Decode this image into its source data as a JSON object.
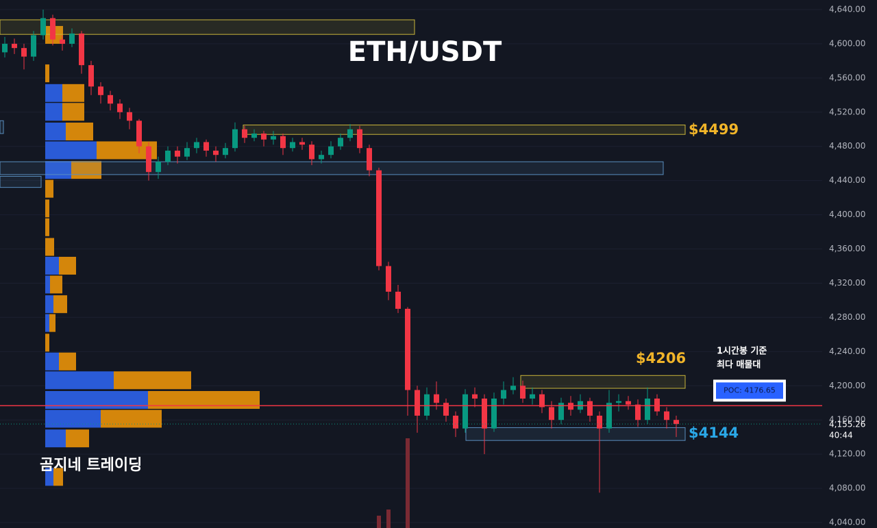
{
  "chart_data": {
    "type": "candlestick",
    "title": "ETH/USDT",
    "ylim": [
      4033.6,
      4651.2
    ],
    "yticks": [
      {
        "value": 4640,
        "label": "4,640.00"
      },
      {
        "value": 4600,
        "label": "4,600.00"
      },
      {
        "value": 4560,
        "label": "4,560.00"
      },
      {
        "value": 4520,
        "label": "4,520.00"
      },
      {
        "value": 4480,
        "label": "4,480.00"
      },
      {
        "value": 4440,
        "label": "4,440.00"
      },
      {
        "value": 4400,
        "label": "4,400.00"
      },
      {
        "value": 4360,
        "label": "4,360.00"
      },
      {
        "value": 4320,
        "label": "4,320.00"
      },
      {
        "value": 4280,
        "label": "4,280.00"
      },
      {
        "value": 4240,
        "label": "4,240.00"
      },
      {
        "value": 4200,
        "label": "4,200.00"
      },
      {
        "value": 4160,
        "label": "4,160.00"
      },
      {
        "value": 4120,
        "label": "4,120.00"
      },
      {
        "value": 4080,
        "label": "4,080.00"
      },
      {
        "value": 4040,
        "label": "4,040.00"
      }
    ],
    "grid": true,
    "up_color": "#089981",
    "down_color": "#f23645",
    "open": [
      4590,
      4600,
      4595,
      4585,
      4610,
      4630,
      4605,
      4600,
      4612,
      4575,
      4550,
      4540,
      4530,
      4520,
      4510,
      4480,
      4450,
      4462,
      4475,
      4468,
      4478,
      4485,
      4475,
      4470,
      4478,
      4500,
      4490,
      4495,
      4488,
      4492,
      4478,
      4485,
      4482,
      4465,
      4470,
      4480,
      4490,
      4500,
      4478,
      4452,
      4340,
      4310,
      4290,
      4195,
      4165,
      4190,
      4180,
      4165,
      4150,
      4190,
      4185,
      4150,
      4185,
      4195,
      4200,
      4185,
      4190,
      4175,
      4160,
      4180,
      4172,
      4182,
      4165,
      4150,
      4180,
      4182,
      4178,
      4160,
      4185,
      4170,
      4160
    ],
    "high": [
      4608,
      4606,
      4600,
      4615,
      4640,
      4634,
      4610,
      4618,
      4615,
      4580,
      4555,
      4545,
      4535,
      4525,
      4512,
      4485,
      4468,
      4480,
      4480,
      4485,
      4490,
      4488,
      4480,
      4484,
      4508,
      4504,
      4500,
      4498,
      4498,
      4495,
      4490,
      4490,
      4486,
      4475,
      4486,
      4495,
      4506,
      4504,
      4482,
      4455,
      4345,
      4318,
      4292,
      4200,
      4198,
      4205,
      4185,
      4170,
      4196,
      4198,
      4190,
      4192,
      4205,
      4210,
      4206,
      4198,
      4195,
      4182,
      4186,
      4188,
      4190,
      4186,
      4170,
      4195,
      4190,
      4188,
      4184,
      4198,
      4190,
      4175,
      4165
    ],
    "low": [
      4584,
      4588,
      4570,
      4580,
      4605,
      4598,
      4592,
      4596,
      4565,
      4540,
      4530,
      4522,
      4512,
      4500,
      4472,
      4440,
      4442,
      4458,
      4460,
      4464,
      4472,
      4468,
      4462,
      4466,
      4474,
      4484,
      4486,
      4480,
      4482,
      4470,
      4474,
      4476,
      4458,
      4460,
      4466,
      4476,
      4486,
      4472,
      4445,
      4335,
      4300,
      4285,
      4165,
      4145,
      4160,
      4172,
      4158,
      4140,
      4145,
      4175,
      4120,
      4146,
      4178,
      4190,
      4180,
      4178,
      4168,
      4150,
      4155,
      4165,
      4168,
      4158,
      4075,
      4145,
      4170,
      4172,
      4152,
      4155,
      4165,
      4150,
      4140
    ],
    "close": [
      4600,
      4595,
      4585,
      4610,
      4630,
      4605,
      4600,
      4612,
      4575,
      4550,
      4540,
      4530,
      4520,
      4510,
      4480,
      4450,
      4462,
      4475,
      4468,
      4478,
      4485,
      4475,
      4470,
      4478,
      4500,
      4490,
      4495,
      4488,
      4492,
      4478,
      4485,
      4482,
      4465,
      4470,
      4480,
      4490,
      4500,
      4478,
      4452,
      4340,
      4310,
      4290,
      4195,
      4165,
      4190,
      4180,
      4165,
      4150,
      4190,
      4185,
      4150,
      4185,
      4195,
      4200,
      4185,
      4190,
      4175,
      4160,
      4180,
      4172,
      4182,
      4165,
      4150,
      4180,
      4182,
      4178,
      4160,
      4185,
      4170,
      4160,
      4155.26
    ],
    "volume": [
      null,
      null,
      null,
      null,
      null,
      null,
      null,
      null,
      null,
      null,
      null,
      null,
      null,
      null,
      null,
      null,
      null,
      null,
      null,
      null,
      null,
      null,
      null,
      null,
      null,
      null,
      null,
      null,
      null,
      null,
      null,
      null,
      null,
      null,
      null,
      null,
      null,
      null,
      null,
      18,
      27,
      null,
      131,
      null,
      null,
      null,
      null,
      null,
      null,
      null,
      null,
      null,
      null,
      null,
      null,
      null,
      null,
      null,
      null,
      null,
      null,
      null,
      null,
      null,
      null,
      null,
      null,
      null,
      null,
      null,
      null
    ],
    "volume_color": "#7a2a33",
    "volume_profile": {
      "price": [
        4610,
        4565,
        4542,
        4520,
        4497,
        4475,
        4452,
        4430,
        4407,
        4385,
        4362,
        4340,
        4318,
        4295,
        4273,
        4250,
        4228,
        4206,
        4183,
        4161,
        4138,
        4093
      ],
      "buy": [
        0,
        0,
        25,
        25,
        30,
        75,
        38,
        0,
        0,
        0,
        0,
        20,
        7,
        12,
        6,
        0,
        20,
        100,
        150,
        81,
        30,
        12
      ],
      "sell": [
        26,
        6,
        32,
        32,
        40,
        88,
        44,
        12,
        6,
        6,
        13,
        25,
        18,
        20,
        9,
        6,
        25,
        113,
        163,
        89,
        34,
        14
      ],
      "buy_color": "#2a5bd7",
      "sell_color": "#d4860b"
    },
    "zones": [
      {
        "low": 4611,
        "high": 4628,
        "color": "#c9b53a"
      },
      {
        "low": 4494,
        "high": 4505,
        "color": "#c9b53a"
      },
      {
        "low": 4447,
        "high": 4462,
        "color": "#5a8fc0"
      },
      {
        "low": 4197,
        "high": 4212,
        "color": "#c9b53a"
      },
      {
        "low": 4136,
        "high": 4151,
        "color": "#5a8fc0"
      },
      {
        "low": 4495,
        "high": 4510,
        "color": "#5a8fc0"
      },
      {
        "low": 4432,
        "high": 4445,
        "color": "#5a8fc0"
      }
    ],
    "poc": {
      "value": 4176.65,
      "label": "POC: 4176.65",
      "color": "#f23645",
      "note": [
        "1시간봉 기준",
        "최다 매물대"
      ]
    },
    "annotations": [
      {
        "value": 4499,
        "label": "$4499",
        "color": "#f0b429"
      },
      {
        "value": 4206,
        "label": "$4206",
        "color": "#f0b429"
      },
      {
        "value": 4144,
        "label": "$4144",
        "color": "#2aa7e6"
      }
    ],
    "current_price": {
      "value": 4155.26,
      "label": "4,155.26",
      "countdown": "40:44",
      "color": "#089981"
    },
    "watermark": "곰지네 트레이딩"
  }
}
